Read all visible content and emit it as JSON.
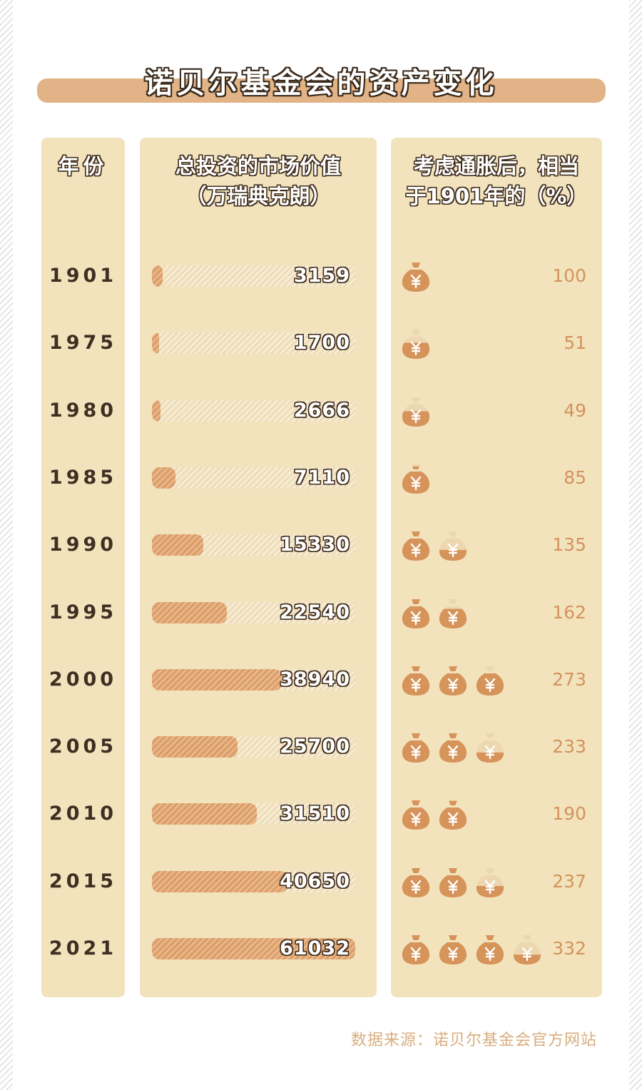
{
  "title": "诺贝尔基金会的资产变化",
  "headers": {
    "year": "年份",
    "value_line1": "总投资的市场价值",
    "value_line2": "（万瑞典克朗）",
    "pct_line1": "考虑通胀后，相当",
    "pct_line2": "于1901年的（%）"
  },
  "source": "数据来源：诺贝尔基金会官方网站",
  "icons": {
    "bag": "money-bag-yuan-icon"
  },
  "colors": {
    "accent": "#e2b386",
    "bar": "#d99d6b",
    "panel": "#f2e3bd",
    "pct_text": "#d3935d"
  },
  "chart_data": {
    "type": "bar",
    "categories": [
      "1901",
      "1975",
      "1980",
      "1985",
      "1990",
      "1995",
      "2000",
      "2005",
      "2010",
      "2015",
      "2021"
    ],
    "series": [
      {
        "values": [
          3159,
          1700,
          2666,
          7110,
          15330,
          22540,
          38940,
          25700,
          31510,
          40650,
          61032
        ]
      },
      {
        "values": [
          100,
          51,
          49,
          85,
          135,
          162,
          273,
          233,
          190,
          237,
          332
        ]
      }
    ],
    "value_labels": [
      "3159",
      "1700",
      "2666",
      "7110",
      "15330",
      "22540",
      "38940",
      "25700",
      "31510",
      "40650",
      "61032"
    ],
    "pct_labels": [
      "100",
      "51",
      "49",
      "85",
      "135",
      "162",
      "273",
      "233",
      "190",
      "237",
      "332"
    ],
    "ylim": [
      0,
      61032
    ],
    "pct_unit_per_bag": 100
  }
}
